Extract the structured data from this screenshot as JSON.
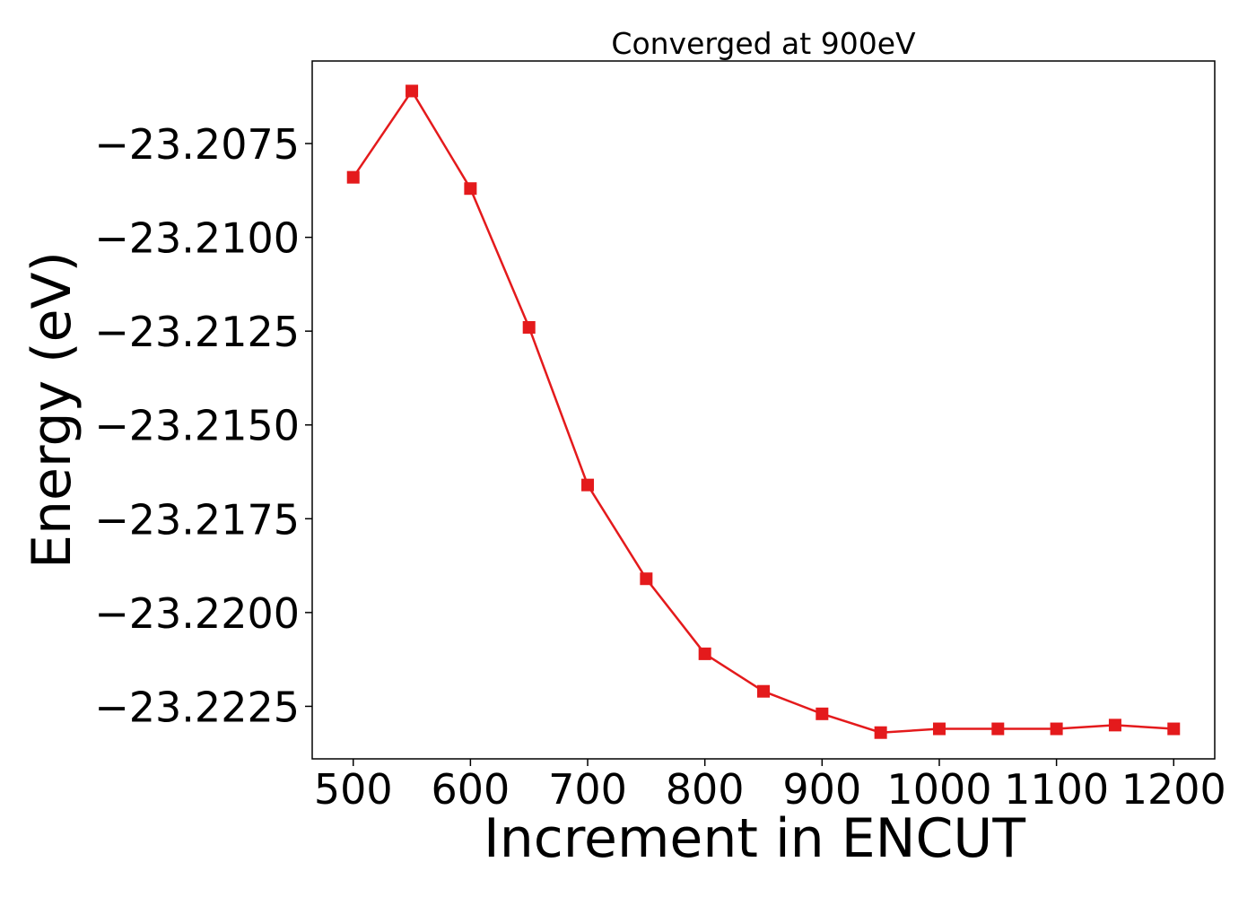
{
  "chart_data": {
    "type": "line",
    "title": "Converged at 900eV",
    "xlabel": "Increment in ENCUT",
    "ylabel": "Energy (eV)",
    "x": [
      500,
      550,
      600,
      650,
      700,
      750,
      800,
      850,
      900,
      950,
      1000,
      1050,
      1100,
      1150,
      1200
    ],
    "series": [
      {
        "name": "",
        "color": "#e41a1c",
        "marker": "square",
        "values": [
          -23.2084,
          -23.2061,
          -23.2087,
          -23.2124,
          -23.2166,
          -23.2191,
          -23.2211,
          -23.2221,
          -23.2227,
          -23.2232,
          -23.2231,
          -23.2231,
          -23.2231,
          -23.223,
          -23.2231
        ]
      }
    ],
    "xticks": [
      500,
      600,
      700,
      800,
      900,
      1000,
      1100,
      1200
    ],
    "xtick_labels": [
      "500",
      "600",
      "700",
      "800",
      "900",
      "1000",
      "1100",
      "1200"
    ],
    "yticks": [
      -23.2075,
      -23.21,
      -23.2125,
      -23.215,
      -23.2175,
      -23.22,
      -23.2225
    ],
    "ytick_labels": [
      "−23.2075",
      "−23.2100",
      "−23.2125",
      "−23.2150",
      "−23.2175",
      "−23.2200",
      "−23.2225"
    ],
    "xlim": [
      465,
      1235
    ],
    "ylim": [
      -23.2239,
      -23.2053
    ],
    "grid": false,
    "legend": "none"
  }
}
